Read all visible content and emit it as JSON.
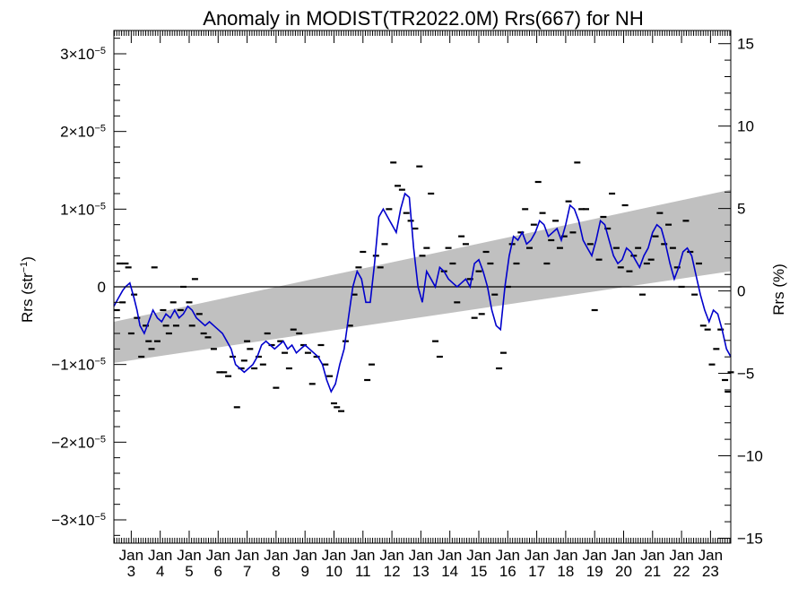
{
  "chart_data": {
    "type": "line",
    "title": "Anomaly in MODIST(TR2022.0M) Rrs(667) for NH",
    "ylabel_left": {
      "base": "Rrs (str",
      "sup": "−1",
      "close": ")"
    },
    "ylabel_right": "Rrs (%)",
    "x_range": [
      2002.4,
      2023.7
    ],
    "y_left_range": [
      -3.3e-05,
      3.3e-05
    ],
    "y_right_range": [
      -15.3,
      15.8
    ],
    "y_left_ticks": [
      {
        "value": -3e-05,
        "mant": "−3×10",
        "exp": "−5"
      },
      {
        "value": -2e-05,
        "mant": "−2×10",
        "exp": "−5"
      },
      {
        "value": -1e-05,
        "mant": "−1×10",
        "exp": "−5"
      },
      {
        "value": 0,
        "mant": "0",
        "exp": ""
      },
      {
        "value": 1e-05,
        "mant": "1×10",
        "exp": "−5"
      },
      {
        "value": 2e-05,
        "mant": "2×10",
        "exp": "−5"
      },
      {
        "value": 3e-05,
        "mant": "3×10",
        "exp": "−5"
      }
    ],
    "y_right_ticks": [
      {
        "value": -15,
        "label": "−15"
      },
      {
        "value": -10,
        "label": "−10"
      },
      {
        "value": -5,
        "label": "−5"
      },
      {
        "value": 0,
        "label": "0"
      },
      {
        "value": 5,
        "label": "5"
      },
      {
        "value": 10,
        "label": "10"
      },
      {
        "value": 15,
        "label": "15"
      }
    ],
    "x_ticks": [
      {
        "value": 2003,
        "month": "Jan",
        "year": "3"
      },
      {
        "value": 2004,
        "month": "Jan",
        "year": "4"
      },
      {
        "value": 2005,
        "month": "Jan",
        "year": "5"
      },
      {
        "value": 2006,
        "month": "Jan",
        "year": "6"
      },
      {
        "value": 2007,
        "month": "Jan",
        "year": "7"
      },
      {
        "value": 2008,
        "month": "Jan",
        "year": "8"
      },
      {
        "value": 2009,
        "month": "Jan",
        "year": "9"
      },
      {
        "value": 2010,
        "month": "Jan",
        "year": "10"
      },
      {
        "value": 2011,
        "month": "Jan",
        "year": "11"
      },
      {
        "value": 2012,
        "month": "Jan",
        "year": "12"
      },
      {
        "value": 2013,
        "month": "Jan",
        "year": "13"
      },
      {
        "value": 2014,
        "month": "Jan",
        "year": "14"
      },
      {
        "value": 2015,
        "month": "Jan",
        "year": "15"
      },
      {
        "value": 2016,
        "month": "Jan",
        "year": "16"
      },
      {
        "value": 2017,
        "month": "Jan",
        "year": "17"
      },
      {
        "value": 2018,
        "month": "Jan",
        "year": "18"
      },
      {
        "value": 2019,
        "month": "Jan",
        "year": "19"
      },
      {
        "value": 2020,
        "month": "Jan",
        "year": "20"
      },
      {
        "value": 2021,
        "month": "Jan",
        "year": "21"
      },
      {
        "value": 2022,
        "month": "Jan",
        "year": "22"
      },
      {
        "value": 2023,
        "month": "Jan",
        "year": "23"
      }
    ],
    "trend_band": {
      "color": "#c0c0c0",
      "x": [
        2002.4,
        2023.7
      ],
      "lower": [
        -9.8e-06,
        2e-06
      ],
      "upper": [
        -4.5e-06,
        1.25e-05
      ]
    },
    "zero_line": 0,
    "line_color": "#0000cc",
    "marker_color": "#000000",
    "smoothed_series": {
      "x": [
        2002.4,
        2002.55,
        2002.7,
        2002.8,
        2002.95,
        2003.1,
        2003.2,
        2003.3,
        2003.45,
        2003.6,
        2003.75,
        2003.9,
        2004.05,
        2004.2,
        2004.35,
        2004.5,
        2004.65,
        2004.8,
        2004.95,
        2005.1,
        2005.25,
        2005.4,
        2005.55,
        2005.7,
        2005.85,
        2006.0,
        2006.15,
        2006.3,
        2006.45,
        2006.6,
        2006.75,
        2006.9,
        2007.05,
        2007.2,
        2007.35,
        2007.5,
        2007.65,
        2007.8,
        2007.95,
        2008.1,
        2008.25,
        2008.4,
        2008.55,
        2008.7,
        2008.85,
        2009.0,
        2009.15,
        2009.3,
        2009.45,
        2009.6,
        2009.75,
        2009.9,
        2010.05,
        2010.2,
        2010.35,
        2010.5,
        2010.65,
        2010.8,
        2010.95,
        2011.1,
        2011.25,
        2011.4,
        2011.55,
        2011.7,
        2011.85,
        2012.0,
        2012.15,
        2012.3,
        2012.45,
        2012.6,
        2012.75,
        2012.9,
        2013.05,
        2013.2,
        2013.35,
        2013.5,
        2013.65,
        2013.8,
        2013.95,
        2014.1,
        2014.25,
        2014.4,
        2014.55,
        2014.7,
        2014.85,
        2015.0,
        2015.15,
        2015.3,
        2015.45,
        2015.6,
        2015.75,
        2015.9,
        2016.05,
        2016.2,
        2016.35,
        2016.5,
        2016.65,
        2016.8,
        2016.95,
        2017.1,
        2017.25,
        2017.4,
        2017.55,
        2017.7,
        2017.85,
        2018.0,
        2018.15,
        2018.3,
        2018.45,
        2018.6,
        2018.75,
        2018.9,
        2019.05,
        2019.2,
        2019.35,
        2019.5,
        2019.65,
        2019.8,
        2019.95,
        2020.1,
        2020.25,
        2020.4,
        2020.55,
        2020.7,
        2020.85,
        2021.0,
        2021.15,
        2021.3,
        2021.45,
        2021.6,
        2021.75,
        2021.9,
        2022.05,
        2022.2,
        2022.35,
        2022.5,
        2022.65,
        2022.8,
        2022.95,
        2023.1,
        2023.25,
        2023.4,
        2023.55,
        2023.7
      ],
      "y": [
        -2.5e-06,
        -1.5e-06,
        -5e-07,
        0.0,
        5e-07,
        -1.5e-06,
        -3e-06,
        -5e-06,
        -6e-06,
        -4.5e-06,
        -3e-06,
        -4e-06,
        -4.5e-06,
        -3.5e-06,
        -4e-06,
        -3e-06,
        -4e-06,
        -3.5e-06,
        -2.5e-06,
        -3e-06,
        -4e-06,
        -4.5e-06,
        -5e-06,
        -4.5e-06,
        -5e-06,
        -5.5e-06,
        -6e-06,
        -7e-06,
        -8e-06,
        -1e-05,
        -1.05e-05,
        -1.1e-05,
        -1.05e-05,
        -1e-05,
        -9e-06,
        -7.5e-06,
        -7e-06,
        -7.5e-06,
        -8e-06,
        -7.5e-06,
        -7e-06,
        -8e-06,
        -7.5e-06,
        -8.5e-06,
        -8e-06,
        -7.5e-06,
        -8e-06,
        -8.5e-06,
        -9e-06,
        -1e-05,
        -1.2e-05,
        -1.35e-05,
        -1.25e-05,
        -1e-05,
        -8e-06,
        -4e-06,
        0.0,
        2e-06,
        1e-06,
        -2e-06,
        -2e-06,
        3e-06,
        9e-06,
        1e-05,
        9e-06,
        8e-06,
        7e-06,
        1e-05,
        1.2e-05,
        1.15e-05,
        5e-06,
        0.0,
        -2e-06,
        2e-06,
        1e-06,
        0.0,
        2.5e-06,
        2e-06,
        1e-06,
        5e-07,
        0.0,
        5e-07,
        1e-06,
        0.0,
        3e-06,
        3.5e-06,
        2e-06,
        0.0,
        -3e-06,
        -5e-06,
        -5.5e-06,
        0.0,
        4e-06,
        6.5e-06,
        6e-06,
        7e-06,
        5.5e-06,
        6e-06,
        7e-06,
        8.5e-06,
        8e-06,
        6.5e-06,
        7e-06,
        7.5e-06,
        6e-06,
        8e-06,
        1.05e-05,
        1e-05,
        8.5e-06,
        6e-06,
        5e-06,
        4e-06,
        6e-06,
        8.5e-06,
        8e-06,
        6e-06,
        4e-06,
        3e-06,
        3.5e-06,
        5e-06,
        4.5e-06,
        3.5e-06,
        2.5e-06,
        4e-06,
        5e-06,
        7e-06,
        8e-06,
        7.5e-06,
        5.5e-06,
        3e-06,
        1e-06,
        2.5e-06,
        4.5e-06,
        5e-06,
        4e-06,
        1.5e-06,
        -1e-06,
        -3e-06,
        -4.5e-06,
        -3e-06,
        -3.5e-06,
        -5.5e-06,
        -8e-06,
        -9e-06
      ]
    },
    "monthly_points": {
      "x": [
        2002.5,
        2002.6,
        2002.7,
        2002.8,
        2002.9,
        2003.0,
        2003.1,
        2003.2,
        2003.35,
        2003.5,
        2003.6,
        2003.7,
        2003.8,
        2003.9,
        2004.1,
        2004.2,
        2004.3,
        2004.45,
        2004.55,
        2004.7,
        2004.8,
        2005.0,
        2005.1,
        2005.2,
        2005.35,
        2005.5,
        2005.65,
        2005.85,
        2006.05,
        2006.2,
        2006.35,
        2006.5,
        2006.65,
        2006.8,
        2006.9,
        2007.0,
        2007.1,
        2007.25,
        2007.4,
        2007.55,
        2007.7,
        2007.85,
        2008.0,
        2008.15,
        2008.3,
        2008.45,
        2008.6,
        2008.8,
        2008.95,
        2009.1,
        2009.25,
        2009.4,
        2009.55,
        2009.7,
        2009.85,
        2010.0,
        2010.1,
        2010.25,
        2010.4,
        2010.55,
        2010.7,
        2010.85,
        2011.0,
        2011.15,
        2011.3,
        2011.45,
        2011.6,
        2011.75,
        2011.9,
        2012.05,
        2012.2,
        2012.35,
        2012.5,
        2012.65,
        2012.8,
        2012.95,
        2013.05,
        2013.2,
        2013.35,
        2013.5,
        2013.65,
        2013.8,
        2013.95,
        2014.1,
        2014.25,
        2014.4,
        2014.55,
        2014.7,
        2014.85,
        2015.0,
        2015.1,
        2015.25,
        2015.4,
        2015.55,
        2015.7,
        2015.85,
        2016.0,
        2016.15,
        2016.3,
        2016.45,
        2016.6,
        2016.75,
        2016.9,
        2017.05,
        2017.2,
        2017.35,
        2017.5,
        2017.65,
        2017.8,
        2017.95,
        2018.1,
        2018.25,
        2018.4,
        2018.55,
        2018.7,
        2018.85,
        2019.0,
        2019.15,
        2019.3,
        2019.45,
        2019.6,
        2019.75,
        2019.9,
        2020.05,
        2020.2,
        2020.35,
        2020.5,
        2020.65,
        2020.8,
        2020.95,
        2021.1,
        2021.25,
        2021.4,
        2021.55,
        2021.7,
        2021.85,
        2022.0,
        2022.15,
        2022.3,
        2022.45,
        2022.6,
        2022.75,
        2022.9,
        2023.05,
        2023.2,
        2023.35,
        2023.5,
        2023.6,
        2023.7
      ],
      "y": [
        -3e-06,
        3e-06,
        -2e-06,
        3e-06,
        2.5e-06,
        -6e-06,
        -1e-06,
        -4e-06,
        -9e-06,
        -5e-06,
        -7e-06,
        -8e-06,
        2.5e-06,
        -7e-06,
        -3e-06,
        -5e-06,
        -6e-06,
        -2e-06,
        -5e-06,
        -3e-06,
        0.0,
        -2e-06,
        -5e-06,
        1e-06,
        -3.5e-06,
        -6e-06,
        -6.5e-06,
        -8e-06,
        -1.1e-05,
        -1.1e-05,
        -1.15e-05,
        -9e-06,
        -1.55e-05,
        -1.05e-05,
        -9.5e-06,
        -7e-06,
        -8e-06,
        -1.05e-05,
        -9e-06,
        -1e-05,
        -6e-06,
        -7.5e-06,
        -1.3e-05,
        -7e-06,
        -8.5e-06,
        -1.05e-05,
        -5.5e-06,
        -6e-06,
        -7.5e-06,
        -8.5e-06,
        -1.25e-05,
        -9e-06,
        -7.5e-06,
        -1e-05,
        -1.15e-05,
        -1.5e-05,
        -1.55e-05,
        -1.6e-05,
        -7e-06,
        -5e-06,
        -1e-06,
        2.5e-06,
        4.5e-06,
        -1.2e-05,
        -1e-05,
        4e-06,
        2.5e-06,
        5.5e-06,
        1e-05,
        1.6e-05,
        1.3e-05,
        1.25e-05,
        9.5e-06,
        8.5e-06,
        7.5e-06,
        1.55e-05,
        4e-06,
        5e-06,
        1.2e-05,
        -7e-06,
        -9e-06,
        2e-06,
        5e-06,
        3e-06,
        -2e-06,
        6.5e-06,
        5.5e-06,
        1e-06,
        -4e-06,
        2e-06,
        -3.5e-06,
        4.5e-06,
        3e-06,
        -1e-06,
        -1.05e-05,
        -8.5e-06,
        0.0,
        5.5e-06,
        3e-06,
        7e-06,
        1e-05,
        5e-06,
        8e-06,
        1.35e-05,
        9.5e-06,
        3e-06,
        6e-06,
        8.5e-06,
        5e-06,
        6.5e-06,
        1.1e-05,
        7e-06,
        1.6e-05,
        1e-05,
        1e-05,
        5.5e-06,
        -3e-06,
        3.5e-06,
        9e-06,
        7.5e-06,
        1.2e-05,
        5e-06,
        2.5e-06,
        1.05e-05,
        2e-06,
        4e-06,
        5e-06,
        -1e-06,
        3e-06,
        3.5e-06,
        6.5e-06,
        9.5e-06,
        5.5e-06,
        8e-06,
        5e-06,
        2.5e-06,
        0.0,
        8.5e-06,
        4.5e-06,
        -1e-06,
        3e-06,
        -5e-06,
        -5.5e-06,
        -1e-05,
        -8e-06,
        -5.5e-06,
        -1.2e-05,
        -1.35e-05,
        -1.1e-05
      ]
    }
  }
}
